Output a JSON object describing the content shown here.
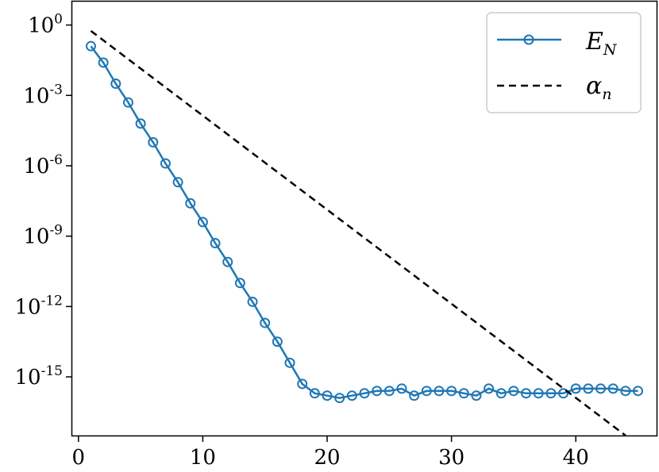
{
  "chart_data": {
    "type": "line",
    "title": "",
    "xlabel": "",
    "ylabel": "",
    "xlim": [
      -0.5,
      46.5
    ],
    "ylog10lim": [
      1.0,
      -17.5
    ],
    "yscale": "log",
    "grid": false,
    "legend_position": "top-right",
    "x_ticks": [
      0,
      10,
      20,
      30,
      40
    ],
    "y_ticks": [
      {
        "exponent": 0,
        "base": "10",
        "exp": "0"
      },
      {
        "exponent": -3,
        "base": "10",
        "exp": "-3"
      },
      {
        "exponent": -6,
        "base": "10",
        "exp": "-6"
      },
      {
        "exponent": -9,
        "base": "10",
        "exp": "-9"
      },
      {
        "exponent": -12,
        "base": "10",
        "exp": "-12"
      },
      {
        "exponent": -15,
        "base": "10",
        "exp": "-15"
      }
    ],
    "series": [
      {
        "name": "E_N",
        "legend_main": "E",
        "legend_sub": "N",
        "style": "solid-circles",
        "color": "#1f77b4",
        "x": [
          1,
          2,
          3,
          4,
          5,
          6,
          7,
          8,
          9,
          10,
          11,
          12,
          13,
          14,
          15,
          16,
          17,
          18,
          19,
          20,
          21,
          22,
          23,
          24,
          25,
          26,
          27,
          28,
          29,
          30,
          31,
          32,
          33,
          34,
          35,
          36,
          37,
          38,
          39,
          40,
          41,
          42,
          43,
          44,
          45
        ],
        "log10_y": [
          -0.9,
          -1.6,
          -2.5,
          -3.3,
          -4.2,
          -5.0,
          -5.9,
          -6.7,
          -7.6,
          -8.4,
          -9.3,
          -10.1,
          -11.0,
          -11.8,
          -12.7,
          -13.5,
          -14.4,
          -15.3,
          -15.7,
          -15.8,
          -15.9,
          -15.8,
          -15.7,
          -15.6,
          -15.6,
          -15.5,
          -15.8,
          -15.6,
          -15.6,
          -15.6,
          -15.7,
          -15.8,
          -15.5,
          -15.7,
          -15.6,
          -15.7,
          -15.7,
          -15.7,
          -15.7,
          -15.5,
          -15.5,
          -15.5,
          -15.5,
          -15.6,
          -15.6
        ]
      },
      {
        "name": "alpha_n",
        "legend_main": "α",
        "legend_sub": "n",
        "style": "dashed",
        "color": "#000000",
        "x": [
          1,
          44
        ],
        "log10_y": [
          -0.25,
          -17.5
        ]
      }
    ]
  }
}
